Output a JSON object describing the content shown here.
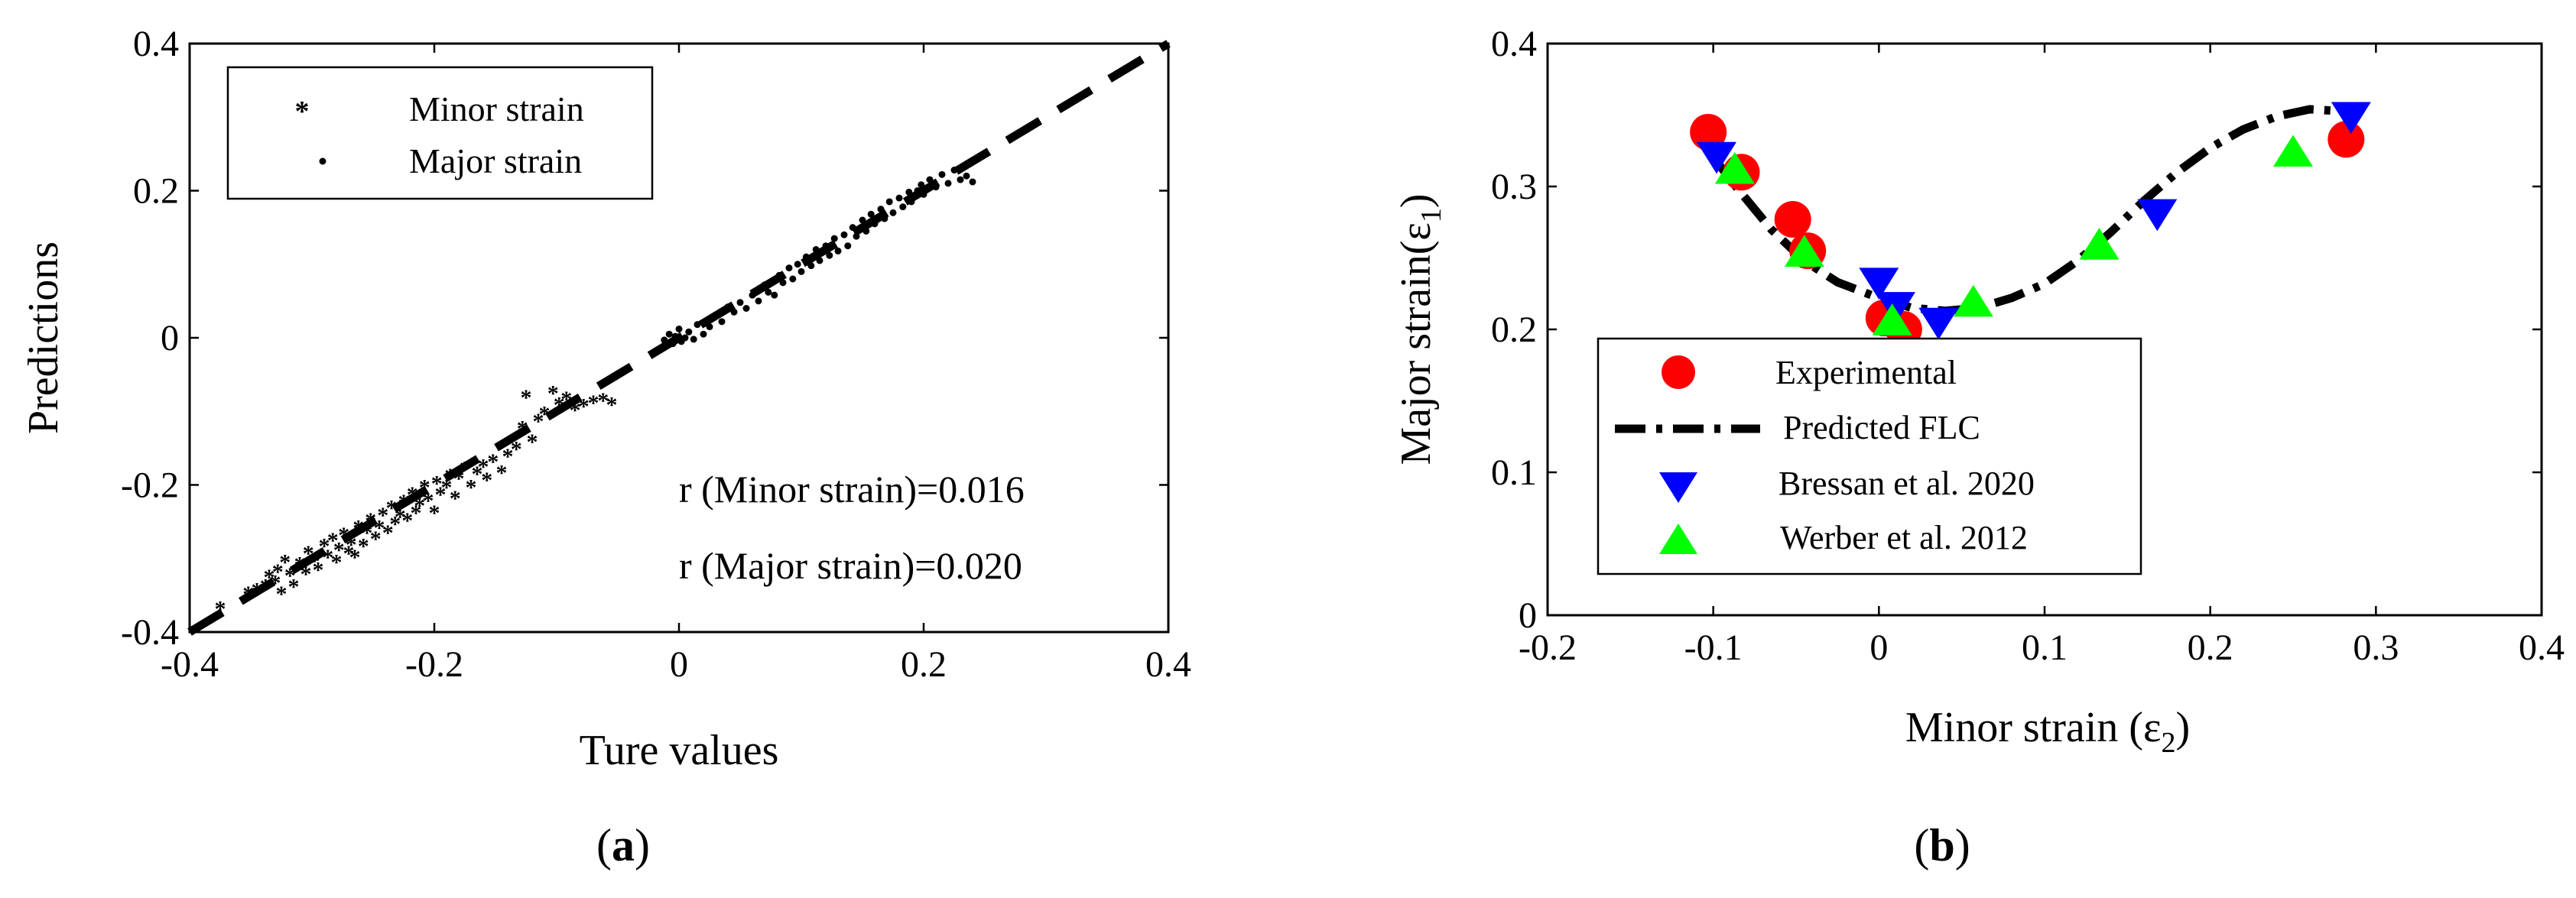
{
  "colors": {
    "minor_marker": "#ff0000",
    "major_marker": "#000000",
    "experimental": "#ff0000",
    "bressan": "#0000ff",
    "werber": "#00ff00",
    "line": "#000000"
  },
  "chart_data": [
    {
      "id": "a",
      "type": "scatter",
      "panel_label": "a",
      "xlabel": "Ture values",
      "ylabel": "Predictions",
      "xlim": [
        -0.4,
        0.4
      ],
      "ylim": [
        -0.4,
        0.4
      ],
      "xticks": [
        -0.4,
        -0.2,
        0,
        0.2,
        0.4
      ],
      "xtick_labels": [
        "-0.4",
        "-0.2",
        "0",
        "0.2",
        "0.4"
      ],
      "yticks": [
        -0.4,
        -0.2,
        0,
        0.2,
        0.4
      ],
      "ytick_labels": [
        "-0.4",
        "-0.2",
        "0",
        "0.2",
        "0.4"
      ],
      "grid": false,
      "legend": {
        "position": "top-left",
        "entries": [
          "Minor strain",
          "Major strain"
        ]
      },
      "annotations": [
        "r (Minor strain)=0.016",
        "r (Major strain)=0.020"
      ],
      "reference_line": {
        "name": "y = x",
        "x": [
          -0.4,
          0.4
        ],
        "y": [
          -0.4,
          0.4
        ],
        "style": "dashed"
      },
      "series": [
        {
          "name": "Minor strain",
          "marker": "asterisk",
          "points": [
            [
              -0.375,
              -0.365
            ],
            [
              -0.352,
              -0.345
            ],
            [
              -0.345,
              -0.34
            ],
            [
              -0.338,
              -0.335
            ],
            [
              -0.335,
              -0.322
            ],
            [
              -0.33,
              -0.33
            ],
            [
              -0.328,
              -0.315
            ],
            [
              -0.325,
              -0.345
            ],
            [
              -0.322,
              -0.302
            ],
            [
              -0.318,
              -0.32
            ],
            [
              -0.315,
              -0.335
            ],
            [
              -0.31,
              -0.305
            ],
            [
              -0.305,
              -0.318
            ],
            [
              -0.303,
              -0.29
            ],
            [
              -0.298,
              -0.3
            ],
            [
              -0.295,
              -0.312
            ],
            [
              -0.29,
              -0.28
            ],
            [
              -0.287,
              -0.295
            ],
            [
              -0.283,
              -0.272
            ],
            [
              -0.28,
              -0.302
            ],
            [
              -0.278,
              -0.285
            ],
            [
              -0.274,
              -0.265
            ],
            [
              -0.27,
              -0.29
            ],
            [
              -0.268,
              -0.278
            ],
            [
              -0.265,
              -0.295
            ],
            [
              -0.262,
              -0.255
            ],
            [
              -0.258,
              -0.28
            ],
            [
              -0.255,
              -0.262
            ],
            [
              -0.252,
              -0.245
            ],
            [
              -0.248,
              -0.27
            ],
            [
              -0.245,
              -0.255
            ],
            [
              -0.242,
              -0.238
            ],
            [
              -0.238,
              -0.262
            ],
            [
              -0.235,
              -0.228
            ],
            [
              -0.232,
              -0.25
            ],
            [
              -0.228,
              -0.24
            ],
            [
              -0.225,
              -0.22
            ],
            [
              -0.222,
              -0.245
            ],
            [
              -0.218,
              -0.21
            ],
            [
              -0.215,
              -0.235
            ],
            [
              -0.212,
              -0.225
            ],
            [
              -0.208,
              -0.2
            ],
            [
              -0.205,
              -0.218
            ],
            [
              -0.2,
              -0.235
            ],
            [
              -0.198,
              -0.195
            ],
            [
              -0.195,
              -0.21
            ],
            [
              -0.19,
              -0.2
            ],
            [
              -0.187,
              -0.185
            ],
            [
              -0.183,
              -0.215
            ],
            [
              -0.18,
              -0.188
            ],
            [
              -0.175,
              -0.175
            ],
            [
              -0.17,
              -0.2
            ],
            [
              -0.165,
              -0.182
            ],
            [
              -0.16,
              -0.172
            ],
            [
              -0.157,
              -0.19
            ],
            [
              -0.152,
              -0.165
            ],
            [
              -0.145,
              -0.18
            ],
            [
              -0.14,
              -0.158
            ],
            [
              -0.133,
              -0.148
            ],
            [
              -0.128,
              -0.12
            ],
            [
              -0.125,
              -0.078
            ],
            [
              -0.12,
              -0.138
            ],
            [
              -0.115,
              -0.11
            ],
            [
              -0.11,
              -0.1
            ],
            [
              -0.103,
              -0.072
            ],
            [
              -0.098,
              -0.088
            ],
            [
              -0.092,
              -0.08
            ],
            [
              -0.085,
              -0.095
            ],
            [
              -0.078,
              -0.09
            ],
            [
              -0.07,
              -0.085
            ],
            [
              -0.062,
              -0.082
            ],
            [
              -0.055,
              -0.088
            ]
          ]
        },
        {
          "name": "Major strain",
          "marker": "dot",
          "points": [
            [
              -0.012,
              -0.003
            ],
            [
              -0.008,
              0.005
            ],
            [
              -0.005,
              -0.008
            ],
            [
              -0.003,
              0.002
            ],
            [
              0.0,
              0.012
            ],
            [
              0.002,
              -0.005
            ],
            [
              0.005,
              0.0
            ],
            [
              0.008,
              0.008
            ],
            [
              0.012,
              -0.002
            ],
            [
              0.015,
              0.018
            ],
            [
              0.02,
              0.005
            ],
            [
              0.025,
              0.015
            ],
            [
              0.03,
              0.03
            ],
            [
              0.035,
              0.022
            ],
            [
              0.04,
              0.042
            ],
            [
              0.045,
              0.035
            ],
            [
              0.05,
              0.048
            ],
            [
              0.055,
              0.04
            ],
            [
              0.06,
              0.058
            ],
            [
              0.065,
              0.05
            ],
            [
              0.07,
              0.072
            ],
            [
              0.073,
              0.062
            ],
            [
              0.078,
              0.058
            ],
            [
              0.082,
              0.085
            ],
            [
              0.085,
              0.075
            ],
            [
              0.09,
              0.095
            ],
            [
              0.093,
              0.08
            ],
            [
              0.097,
              0.1
            ],
            [
              0.1,
              0.09
            ],
            [
              0.104,
              0.11
            ],
            [
              0.108,
              0.098
            ],
            [
              0.112,
              0.12
            ],
            [
              0.115,
              0.105
            ],
            [
              0.12,
              0.125
            ],
            [
              0.123,
              0.112
            ],
            [
              0.127,
              0.135
            ],
            [
              0.13,
              0.118
            ],
            [
              0.135,
              0.14
            ],
            [
              0.138,
              0.125
            ],
            [
              0.142,
              0.15
            ],
            [
              0.145,
              0.138
            ],
            [
              0.15,
              0.16
            ],
            [
              0.153,
              0.145
            ],
            [
              0.157,
              0.168
            ],
            [
              0.16,
              0.155
            ],
            [
              0.165,
              0.175
            ],
            [
              0.168,
              0.162
            ],
            [
              0.172,
              0.185
            ],
            [
              0.175,
              0.17
            ],
            [
              0.18,
              0.19
            ],
            [
              0.183,
              0.178
            ],
            [
              0.188,
              0.198
            ],
            [
              0.19,
              0.185
            ],
            [
              0.195,
              0.2
            ],
            [
              0.198,
              0.208
            ],
            [
              0.2,
              0.195
            ],
            [
              0.205,
              0.215
            ],
            [
              0.21,
              0.205
            ],
            [
              0.215,
              0.222
            ],
            [
              0.22,
              0.21
            ],
            [
              0.225,
              0.228
            ],
            [
              0.23,
              0.215
            ],
            [
              0.235,
              0.22
            ],
            [
              0.24,
              0.212
            ]
          ]
        }
      ]
    },
    {
      "id": "b",
      "type": "scatter",
      "panel_label": "b",
      "xlabel_main": "Minor strain (ε",
      "xlabel_sub": "2",
      "xlabel_end": ")",
      "ylabel_main": "Major strain(ε",
      "ylabel_sub": "1",
      "ylabel_end": ")",
      "xlim": [
        -0.2,
        0.4
      ],
      "ylim": [
        0,
        0.4
      ],
      "xticks": [
        -0.2,
        -0.1,
        0,
        0.1,
        0.2,
        0.3,
        0.4
      ],
      "xtick_labels": [
        "-0.2",
        "-0.1",
        "0",
        "0.1",
        "0.2",
        "0.3",
        "0.4"
      ],
      "yticks": [
        0,
        0.1,
        0.2,
        0.3,
        0.4
      ],
      "ytick_labels": [
        "0",
        "0.1",
        "0.2",
        "0.3",
        "0.4"
      ],
      "grid": false,
      "legend": {
        "position": "bottom-left",
        "entries": [
          "Experimental",
          "Predicted FLC",
          "Bressan et al. 2020",
          "Werber et al. 2012"
        ]
      },
      "series": [
        {
          "name": "Experimental",
          "marker": "circle",
          "points": [
            [
              -0.103,
              0.338
            ],
            [
              -0.083,
              0.31
            ],
            [
              -0.052,
              0.277
            ],
            [
              -0.043,
              0.255
            ],
            [
              0.003,
              0.208
            ],
            [
              0.015,
              0.2
            ],
            [
              0.282,
              0.333
            ]
          ]
        },
        {
          "name": "Predicted FLC",
          "marker": "dashdot-line",
          "points": [
            [
              -0.103,
              0.325
            ],
            [
              -0.085,
              0.298
            ],
            [
              -0.065,
              0.27
            ],
            [
              -0.045,
              0.248
            ],
            [
              -0.025,
              0.233
            ],
            [
              0.0,
              0.222
            ],
            [
              0.02,
              0.215
            ],
            [
              0.04,
              0.213
            ],
            [
              0.06,
              0.215
            ],
            [
              0.08,
              0.222
            ],
            [
              0.1,
              0.232
            ],
            [
              0.12,
              0.248
            ],
            [
              0.14,
              0.268
            ],
            [
              0.16,
              0.29
            ],
            [
              0.18,
              0.31
            ],
            [
              0.2,
              0.327
            ],
            [
              0.22,
              0.34
            ],
            [
              0.24,
              0.349
            ],
            [
              0.26,
              0.354
            ],
            [
              0.29,
              0.352
            ]
          ]
        },
        {
          "name": "Bressan et al. 2020",
          "marker": "triangle-down",
          "points": [
            [
              -0.098,
              0.32
            ],
            [
              0.0,
              0.232
            ],
            [
              0.01,
              0.215
            ],
            [
              0.036,
              0.204
            ],
            [
              0.168,
              0.28
            ],
            [
              0.285,
              0.348
            ]
          ]
        },
        {
          "name": "Werber et al. 2012",
          "marker": "triangle-up",
          "points": [
            [
              -0.087,
              0.313
            ],
            [
              -0.045,
              0.255
            ],
            [
              0.008,
              0.207
            ],
            [
              0.057,
              0.22
            ],
            [
              0.133,
              0.26
            ],
            [
              0.25,
              0.325
            ]
          ]
        }
      ]
    }
  ]
}
